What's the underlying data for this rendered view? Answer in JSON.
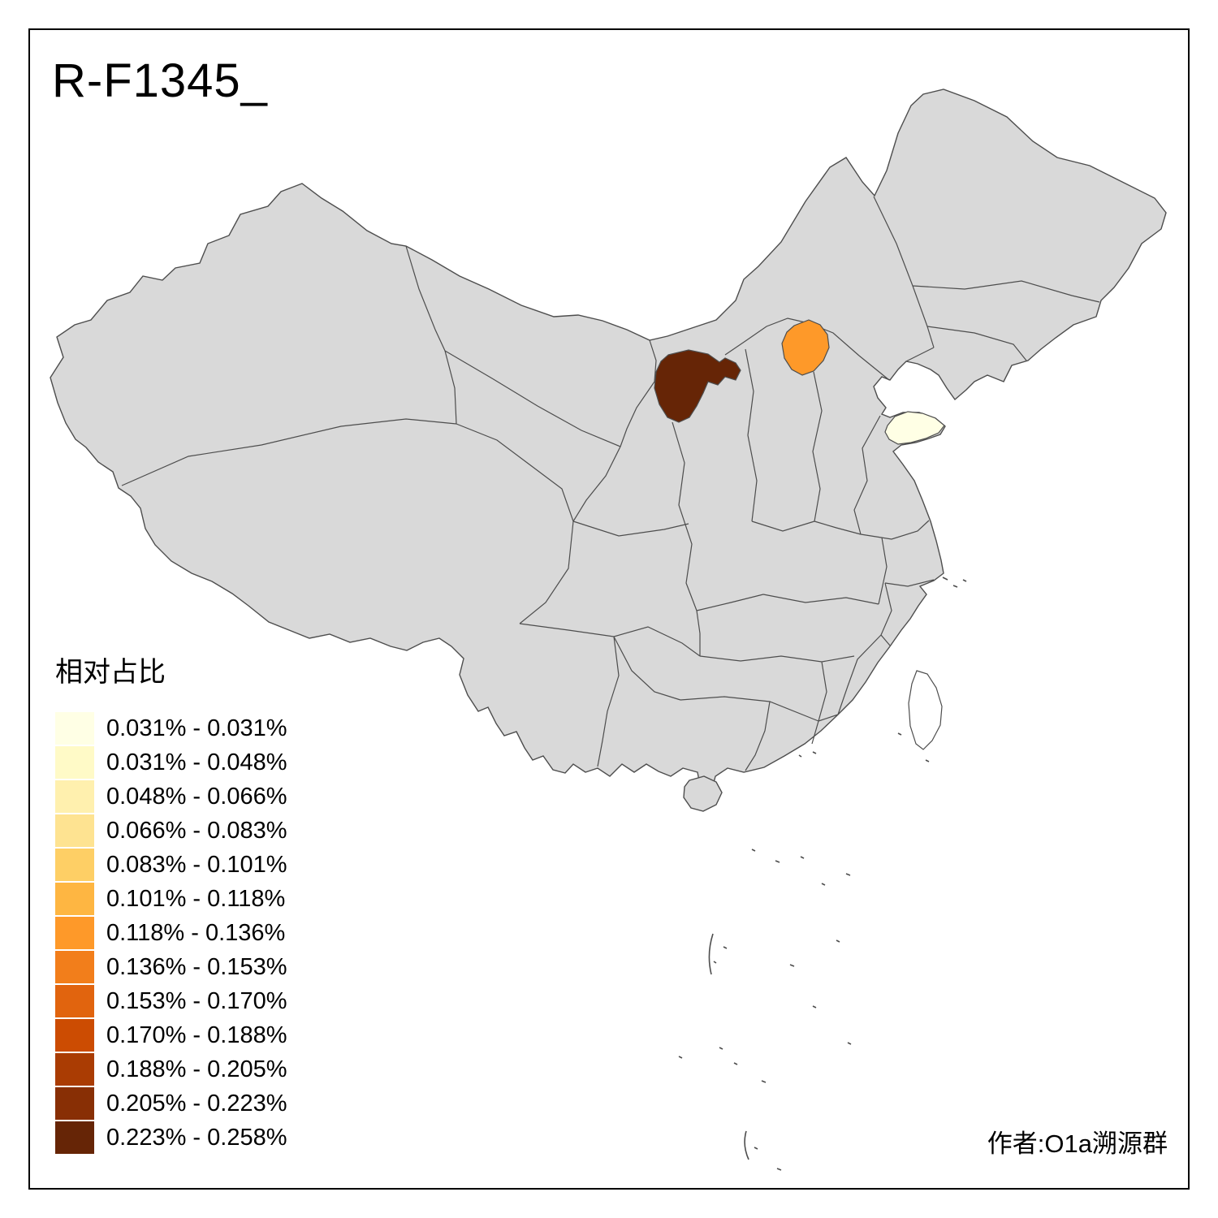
{
  "title": "R-F1345_",
  "credit": "作者:O1a溯源群",
  "legend": {
    "title": "相对占比",
    "items": [
      {
        "label": "0.031% - 0.031%",
        "color": "#ffffe5"
      },
      {
        "label": "0.031% - 0.048%",
        "color": "#fffac7"
      },
      {
        "label": "0.048% - 0.066%",
        "color": "#fff0ae"
      },
      {
        "label": "0.066% - 0.083%",
        "color": "#fee391"
      },
      {
        "label": "0.083% - 0.101%",
        "color": "#fecf65"
      },
      {
        "label": "0.101% - 0.118%",
        "color": "#feb642"
      },
      {
        "label": "0.118% - 0.136%",
        "color": "#fe9929"
      },
      {
        "label": "0.136% - 0.153%",
        "color": "#f27e1b"
      },
      {
        "label": "0.153% - 0.170%",
        "color": "#e1640e"
      },
      {
        "label": "0.170% - 0.188%",
        "color": "#cc4c02"
      },
      {
        "label": "0.188% - 0.205%",
        "color": "#aa3c03"
      },
      {
        "label": "0.205% - 0.223%",
        "color": "#882f05"
      },
      {
        "label": "0.223% - 0.258%",
        "color": "#662506"
      }
    ]
  },
  "map": {
    "default_fill": "#d9d9d9",
    "border_color": "#4d4d4d",
    "water_fill": "#ffffff",
    "regions": [
      {
        "id": "region-darkest",
        "bin": "0.223% - 0.258%",
        "color": "#662506"
      },
      {
        "id": "region-orange",
        "bin": "0.118% - 0.136%",
        "color": "#fe9929"
      },
      {
        "id": "region-palest",
        "bin": "0.031% - 0.031%",
        "color": "#ffffe5"
      }
    ]
  },
  "chart_data": {
    "type": "heatmap",
    "title": "R-F1345_",
    "legend_title": "相对占比",
    "legend_position": "bottom-left",
    "bins": [
      "0.031% - 0.031%",
      "0.031% - 0.048%",
      "0.048% - 0.066%",
      "0.066% - 0.083%",
      "0.083% - 0.101%",
      "0.101% - 0.118%",
      "0.118% - 0.136%",
      "0.136% - 0.153%",
      "0.153% - 0.170%",
      "0.170% - 0.188%",
      "0.188% - 0.205%",
      "0.205% - 0.223%",
      "0.223% - 0.258%"
    ],
    "colored_regions": [
      {
        "location": "north-central province (dark brown)",
        "bin": "0.223% - 0.258%",
        "color": "#662506"
      },
      {
        "location": "Beijing-area province (orange)",
        "bin": "0.118% - 0.136%",
        "color": "#fe9929"
      },
      {
        "location": "eastern Shandong peninsula (pale yellow)",
        "bin": "0.031% - 0.031%",
        "color": "#ffffe5"
      }
    ],
    "uncolored_fill": "#d9d9d9"
  }
}
